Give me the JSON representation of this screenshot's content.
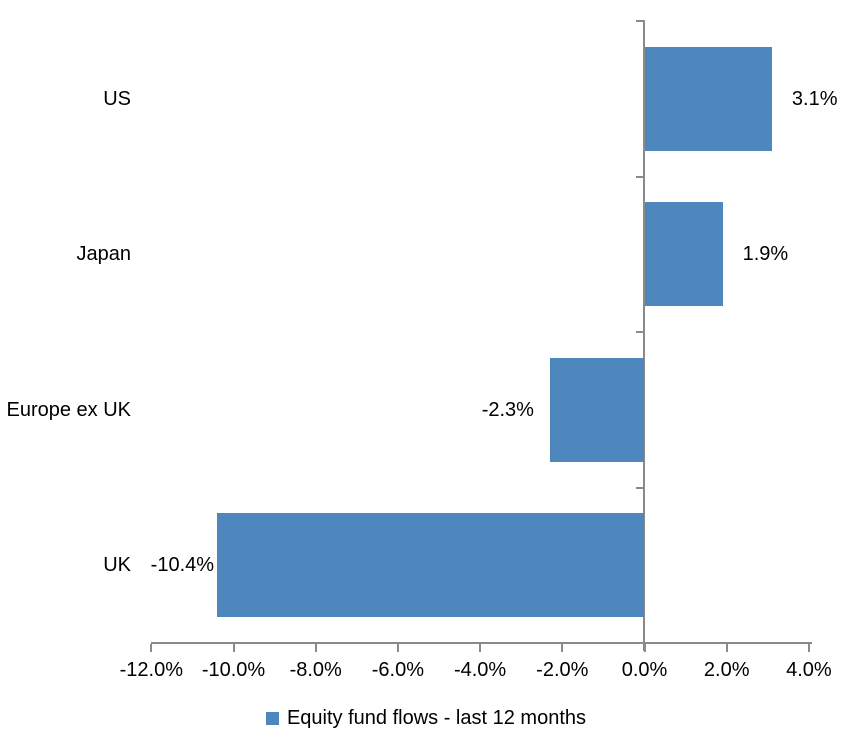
{
  "chart_data": {
    "type": "bar",
    "orientation": "horizontal",
    "title": "",
    "categories": [
      "US",
      "Japan",
      "Europe ex UK",
      "UK"
    ],
    "series": [
      {
        "name": "Equity fund flows - last 12 months",
        "values": [
          3.1,
          1.9,
          -2.3,
          -10.4
        ],
        "data_labels": [
          "3.1%",
          "1.9%",
          "-2.3%",
          "-10.4%"
        ]
      }
    ],
    "xlabel": "",
    "ylabel": "",
    "xlim": [
      -12,
      4
    ],
    "x_ticks": [
      -12,
      -10,
      -8,
      -6,
      -4,
      -2,
      0,
      2,
      4
    ],
    "x_tick_labels": [
      "-12.0%",
      "-10.0%",
      "-8.0%",
      "-6.0%",
      "-4.0%",
      "-2.0%",
      "0.0%",
      "2.0%",
      "4.0%"
    ],
    "grid": false,
    "legend_position": "bottom",
    "legend": [
      "Equity fund flows - last 12 months"
    ],
    "colors": {
      "bar": "#4e87be",
      "axis": "#8a8a8a",
      "text": "#000000",
      "background": "#ffffff"
    }
  }
}
